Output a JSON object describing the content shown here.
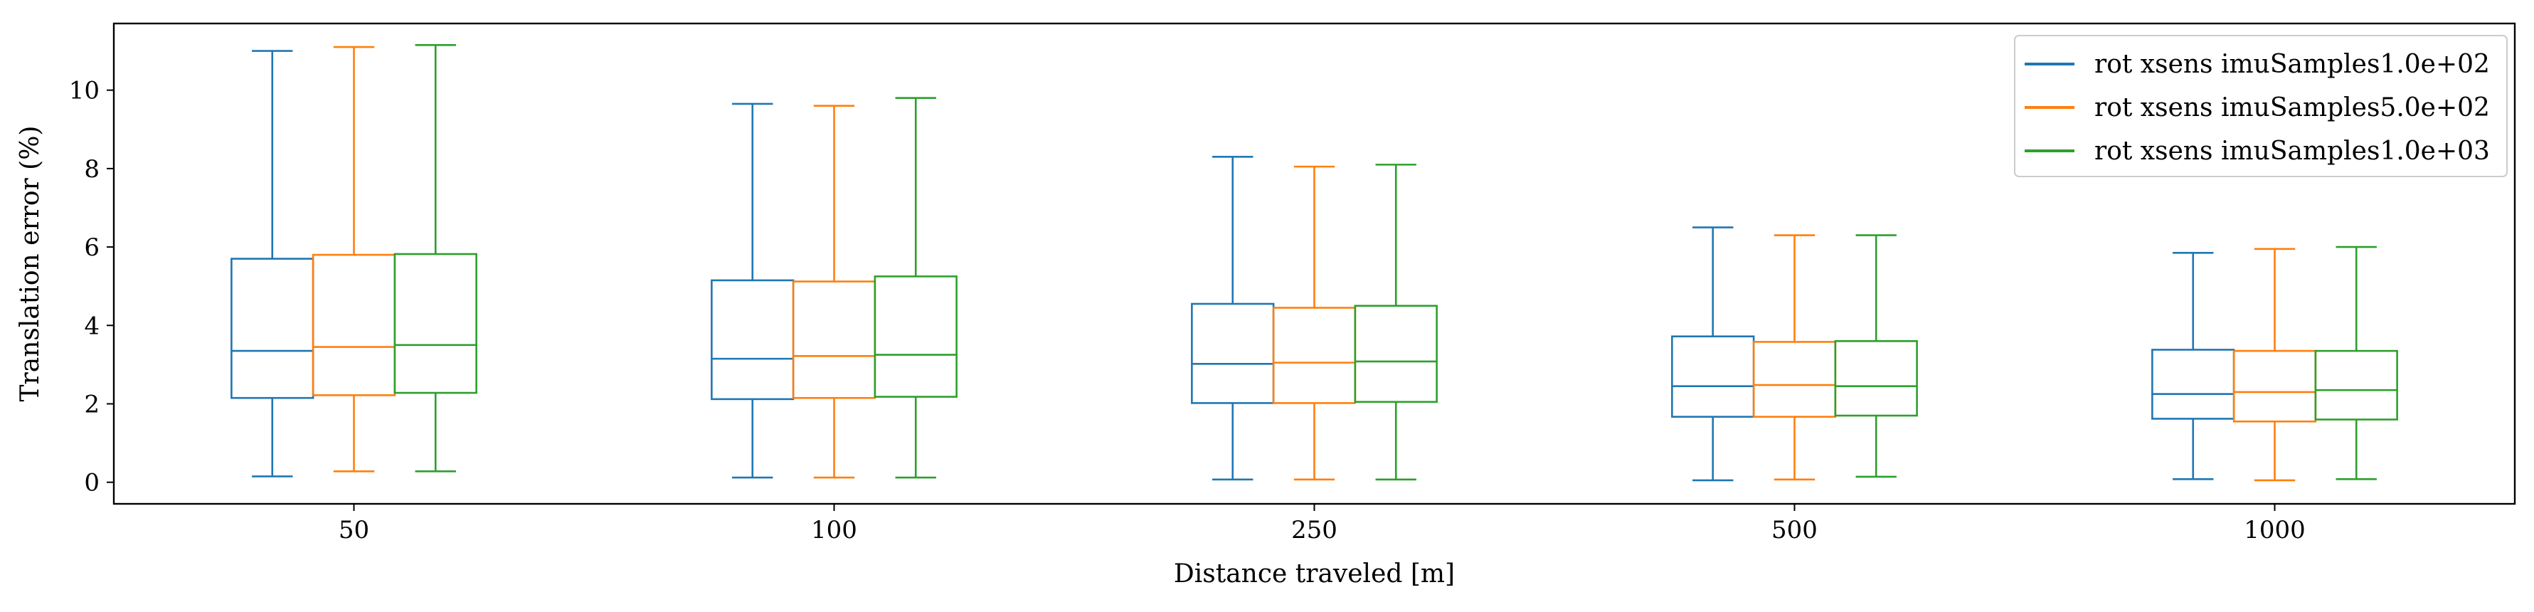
{
  "chart_data": {
    "type": "box",
    "title": "",
    "xlabel": "Distance traveled [m]",
    "ylabel": "Translation error (%)",
    "categories": [
      "50",
      "100",
      "250",
      "500",
      "1000"
    ],
    "ylim": [
      -0.55,
      11.7
    ],
    "yticks": [
      0,
      2,
      4,
      6,
      8,
      10
    ],
    "grid": false,
    "legend_position": "top-right",
    "series": [
      {
        "name": "rot xsens imuSamples1.0e+02",
        "color": "#1f77b4",
        "boxes": [
          {
            "whislo": 0.15,
            "q1": 2.15,
            "med": 3.35,
            "q3": 5.7,
            "whishi": 11.0
          },
          {
            "whislo": 0.12,
            "q1": 2.12,
            "med": 3.15,
            "q3": 5.15,
            "whishi": 9.65
          },
          {
            "whislo": 0.07,
            "q1": 2.02,
            "med": 3.02,
            "q3": 4.55,
            "whishi": 8.3
          },
          {
            "whislo": 0.05,
            "q1": 1.67,
            "med": 2.45,
            "q3": 3.72,
            "whishi": 6.5
          },
          {
            "whislo": 0.08,
            "q1": 1.62,
            "med": 2.25,
            "q3": 3.38,
            "whishi": 5.85
          }
        ]
      },
      {
        "name": "rot xsens imuSamples5.0e+02",
        "color": "#ff7f0e",
        "boxes": [
          {
            "whislo": 0.28,
            "q1": 2.22,
            "med": 3.45,
            "q3": 5.8,
            "whishi": 11.1
          },
          {
            "whislo": 0.12,
            "q1": 2.15,
            "med": 3.22,
            "q3": 5.12,
            "whishi": 9.6
          },
          {
            "whislo": 0.07,
            "q1": 2.02,
            "med": 3.05,
            "q3": 4.45,
            "whishi": 8.05
          },
          {
            "whislo": 0.07,
            "q1": 1.67,
            "med": 2.48,
            "q3": 3.58,
            "whishi": 6.3
          },
          {
            "whislo": 0.05,
            "q1": 1.55,
            "med": 2.3,
            "q3": 3.35,
            "whishi": 5.95
          }
        ]
      },
      {
        "name": "rot xsens imuSamples1.0e+03",
        "color": "#2ca02c",
        "boxes": [
          {
            "whislo": 0.28,
            "q1": 2.28,
            "med": 3.5,
            "q3": 5.82,
            "whishi": 11.15
          },
          {
            "whislo": 0.12,
            "q1": 2.18,
            "med": 3.25,
            "q3": 5.25,
            "whishi": 9.8
          },
          {
            "whislo": 0.07,
            "q1": 2.05,
            "med": 3.08,
            "q3": 4.5,
            "whishi": 8.1
          },
          {
            "whislo": 0.14,
            "q1": 1.7,
            "med": 2.45,
            "q3": 3.6,
            "whishi": 6.3
          },
          {
            "whislo": 0.08,
            "q1": 1.6,
            "med": 2.35,
            "q3": 3.35,
            "whishi": 6.0
          }
        ]
      }
    ]
  }
}
